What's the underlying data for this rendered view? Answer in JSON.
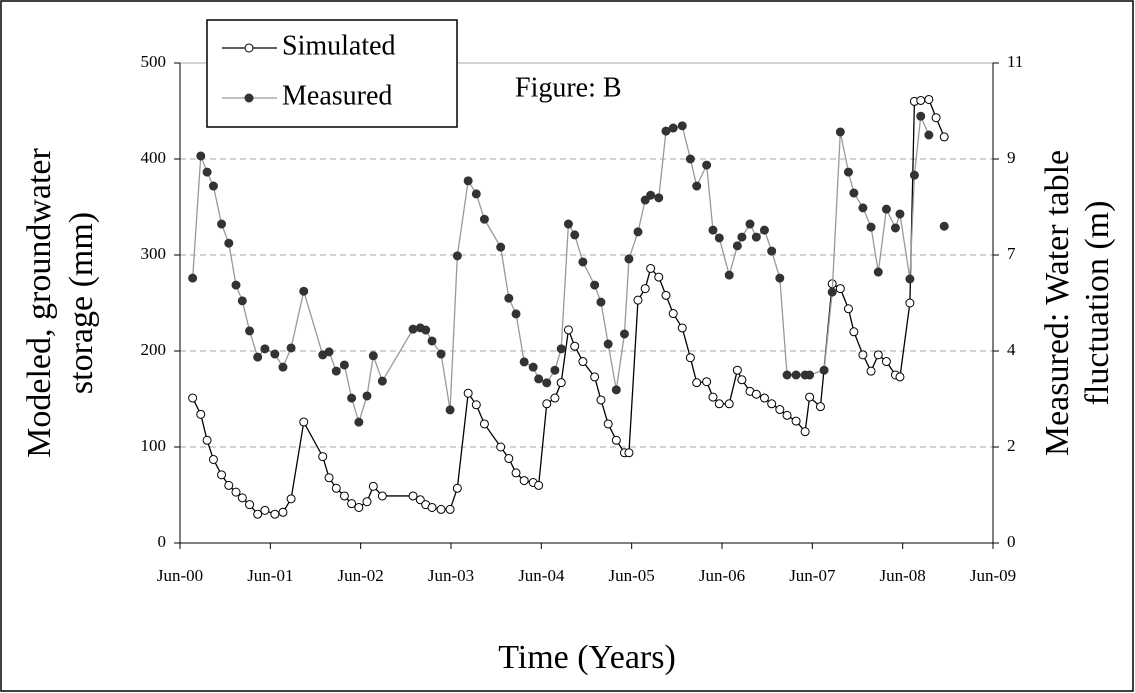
{
  "chart_data": {
    "type": "line",
    "annotation": "Figure: B",
    "x_label": "Time (Years)",
    "y_label": [
      "Modeled, groundwater",
      "storage (mm)"
    ],
    "y2_label": [
      "Measured: Water table",
      "fluctuation (m)"
    ],
    "xlim": [
      2000.42,
      2009.42
    ],
    "xticks": [
      {
        "value": 2000.42,
        "label": "Jun-00"
      },
      {
        "value": 2001.42,
        "label": "Jun-01"
      },
      {
        "value": 2002.42,
        "label": "Jun-02"
      },
      {
        "value": 2003.42,
        "label": "Jun-03"
      },
      {
        "value": 2004.42,
        "label": "Jun-04"
      },
      {
        "value": 2005.42,
        "label": "Jun-05"
      },
      {
        "value": 2006.42,
        "label": "Jun-06"
      },
      {
        "value": 2007.42,
        "label": "Jun-07"
      },
      {
        "value": 2008.42,
        "label": "Jun-08"
      },
      {
        "value": 2009.42,
        "label": "Jun-09"
      }
    ],
    "ylim": [
      0,
      500
    ],
    "yticks": [
      0,
      100,
      200,
      300,
      400,
      500
    ],
    "y2lim": [
      0,
      11
    ],
    "y2ticks": [
      0,
      {
        "value": 2.2,
        "label": "2"
      },
      {
        "value": 4.4,
        "label": "4"
      },
      {
        "value": 6.6,
        "label": "7"
      },
      {
        "value": 8.8,
        "label": "9"
      },
      11
    ],
    "grid": true,
    "legend": "top-left",
    "series": [
      {
        "name": "Simulated",
        "color": "#000000",
        "marker": "open",
        "x": [
          2000.56,
          2000.65,
          2000.72,
          2000.79,
          2000.88,
          2000.96,
          2001.04,
          2001.11,
          2001.19,
          2001.28,
          2001.36,
          2001.47,
          2001.56,
          2001.65,
          2001.79,
          2002.0,
          2002.07,
          2002.15,
          2002.24,
          2002.32,
          2002.4,
          2002.49,
          2002.56,
          2002.66,
          2003.0,
          2003.08,
          2003.14,
          2003.21,
          2003.31,
          2003.41,
          2003.49,
          2003.61,
          2003.7,
          2003.79,
          2003.97,
          2004.06,
          2004.14,
          2004.23,
          2004.33,
          2004.39,
          2004.48,
          2004.57,
          2004.64,
          2004.72,
          2004.79,
          2004.88,
          2005.01,
          2005.08,
          2005.16,
          2005.25,
          2005.34,
          2005.39,
          2005.49,
          2005.57,
          2005.63,
          2005.72,
          2005.8,
          2005.88,
          2005.98,
          2006.07,
          2006.14,
          2006.25,
          2006.32,
          2006.39,
          2006.5,
          2006.59,
          2006.64,
          2006.73,
          2006.8,
          2006.89,
          2006.97,
          2007.06,
          2007.14,
          2007.24,
          2007.34,
          2007.39,
          2007.51,
          2007.64,
          2007.73,
          2007.82,
          2007.88,
          2007.98,
          2008.07,
          2008.15,
          2008.24,
          2008.34,
          2008.39,
          2008.5,
          2008.55,
          2008.62,
          2008.71,
          2008.79,
          2008.88
        ],
        "values": [
          151,
          134,
          107,
          87,
          71,
          60,
          53,
          47,
          40,
          30,
          34,
          30,
          32,
          46,
          126,
          90,
          68,
          57,
          49,
          41,
          37,
          43,
          59,
          49,
          49,
          45,
          40,
          37,
          35,
          35,
          57,
          156,
          144,
          124,
          100,
          88,
          73,
          65,
          63,
          60,
          145,
          151,
          167,
          222,
          205,
          189,
          173,
          149,
          124,
          107,
          94,
          94,
          253,
          265,
          286,
          277,
          258,
          239,
          224,
          193,
          167,
          168,
          152,
          145,
          145,
          180,
          170,
          158,
          155,
          151,
          145,
          139,
          133,
          127,
          116,
          152,
          142,
          270,
          265,
          244,
          220,
          196,
          179,
          196,
          189,
          175,
          173,
          250,
          460,
          461,
          462,
          443,
          423
        ]
      },
      {
        "name": "Measured",
        "color": "#999999",
        "marker": "filled",
        "axis": "y2",
        "x": [
          2000.56,
          2000.65,
          2000.72,
          2000.79,
          2000.88,
          2000.96,
          2001.04,
          2001.11,
          2001.19,
          2001.28,
          2001.36,
          2001.47,
          2001.56,
          2001.65,
          2001.79,
          2002.0,
          2002.07,
          2002.15,
          2002.24,
          2002.32,
          2002.4,
          2002.49,
          2002.56,
          2002.66,
          2003.0,
          2003.08,
          2003.14,
          2003.21,
          2003.31,
          2003.41,
          2003.49,
          2003.61,
          2003.7,
          2003.79,
          2003.97,
          2004.06,
          2004.14,
          2004.23,
          2004.33,
          2004.39,
          2004.48,
          2004.57,
          2004.64,
          2004.72,
          2004.79,
          2004.88,
          2005.01,
          2005.08,
          2005.16,
          2005.25,
          2005.34,
          2005.39,
          2005.49,
          2005.57,
          2005.63,
          2005.72,
          2005.8,
          2005.88,
          2005.98,
          2006.07,
          2006.14,
          2006.25,
          2006.32,
          2006.39,
          2006.5,
          2006.59,
          2006.64,
          2006.73,
          2006.8,
          2006.89,
          2006.97,
          2007.06,
          2007.14,
          2007.24,
          2007.34,
          2007.39,
          2007.55,
          2007.64,
          2007.73,
          2007.82,
          2007.88,
          2007.98,
          2008.07,
          2008.15,
          2008.24,
          2008.34,
          2008.39,
          2008.5,
          2008.55,
          2008.62,
          2008.71,
          2008.79,
          2008.88
        ],
        "values": [
          6.07,
          8.87,
          8.5,
          8.18,
          7.31,
          6.87,
          5.91,
          5.55,
          4.86,
          4.26,
          4.45,
          4.33,
          4.03,
          4.47,
          5.77,
          4.31,
          4.38,
          3.94,
          4.08,
          3.32,
          2.77,
          3.37,
          4.29,
          3.71,
          4.9,
          4.93,
          4.88,
          4.63,
          4.33,
          3.05,
          6.58,
          8.3,
          8.0,
          7.42,
          6.78,
          5.61,
          5.25,
          4.15,
          4.03,
          3.76,
          3.67,
          3.96,
          4.45,
          7.31,
          7.06,
          6.44,
          5.91,
          5.52,
          4.56,
          3.51,
          4.79,
          6.51,
          7.13,
          7.86,
          7.97,
          7.91,
          9.44,
          9.51,
          9.56,
          8.8,
          8.18,
          8.66,
          7.17,
          6.99,
          6.14,
          6.81,
          7.01,
          7.31,
          7.01,
          7.17,
          6.69,
          6.07,
          3.85,
          3.85,
          3.85,
          3.85,
          3.96,
          5.75,
          9.42,
          8.5,
          8.02,
          7.68,
          7.24,
          6.21,
          7.65,
          7.22,
          7.54,
          6.05,
          8.43,
          9.78,
          9.35,
          null,
          7.26
        ]
      }
    ]
  }
}
